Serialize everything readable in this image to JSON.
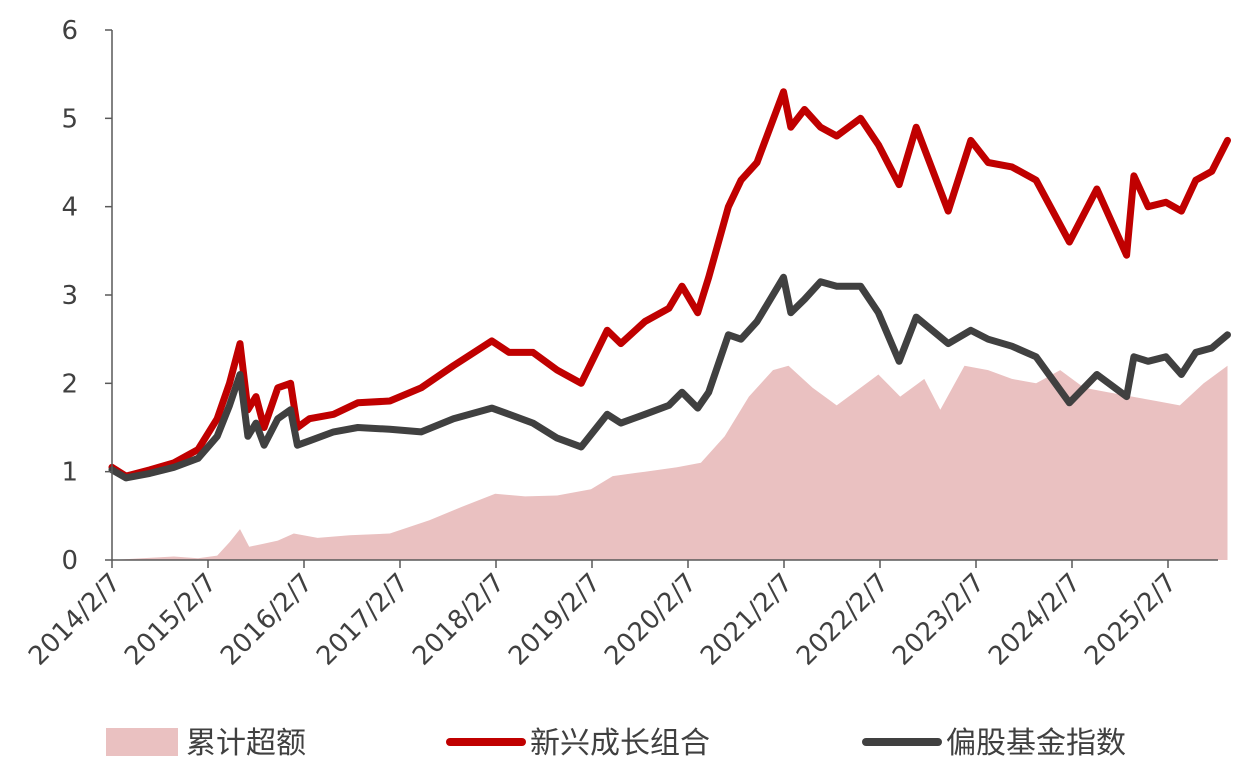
{
  "chart_data": {
    "type": "line",
    "title": "",
    "xlabel": "",
    "ylabel": "",
    "ylim": [
      0,
      6
    ],
    "xlim": [
      "2014-02-07",
      "2025-09-30"
    ],
    "x_ticks": [
      "2014/2/7",
      "2015/2/7",
      "2016/2/7",
      "2017/2/7",
      "2018/2/7",
      "2019/2/7",
      "2020/2/7",
      "2021/2/7",
      "2022/2/7",
      "2023/2/7",
      "2024/2/7",
      "2025/2/7"
    ],
    "y_ticks": [
      "0",
      "1",
      "2",
      "3",
      "4",
      "5",
      "6"
    ],
    "grid": false,
    "legend_position": "bottom",
    "series": [
      {
        "name": "累计超额",
        "type": "area",
        "color": "#eac1c1",
        "points": [
          [
            "2014-02-07",
            0.0
          ],
          [
            "2014-06-01",
            0.02
          ],
          [
            "2014-10-01",
            0.04
          ],
          [
            "2015-01-01",
            0.02
          ],
          [
            "2015-03-15",
            0.05
          ],
          [
            "2015-05-01",
            0.2
          ],
          [
            "2015-06-10",
            0.35
          ],
          [
            "2015-07-15",
            0.15
          ],
          [
            "2015-09-01",
            0.18
          ],
          [
            "2015-11-01",
            0.22
          ],
          [
            "2016-01-01",
            0.3
          ],
          [
            "2016-04-01",
            0.25
          ],
          [
            "2016-08-01",
            0.28
          ],
          [
            "2017-01-01",
            0.3
          ],
          [
            "2017-06-01",
            0.45
          ],
          [
            "2017-10-01",
            0.6
          ],
          [
            "2018-02-07",
            0.75
          ],
          [
            "2018-06-01",
            0.72
          ],
          [
            "2018-10-01",
            0.73
          ],
          [
            "2019-02-07",
            0.8
          ],
          [
            "2019-05-01",
            0.95
          ],
          [
            "2019-09-01",
            1.0
          ],
          [
            "2020-01-01",
            1.05
          ],
          [
            "2020-04-01",
            1.1
          ],
          [
            "2020-07-01",
            1.4
          ],
          [
            "2020-10-01",
            1.85
          ],
          [
            "2021-01-01",
            2.15
          ],
          [
            "2021-03-01",
            2.2
          ],
          [
            "2021-06-01",
            1.95
          ],
          [
            "2021-09-01",
            1.75
          ],
          [
            "2021-12-01",
            1.95
          ],
          [
            "2022-02-07",
            2.1
          ],
          [
            "2022-05-01",
            1.85
          ],
          [
            "2022-08-01",
            2.05
          ],
          [
            "2022-10-01",
            1.7
          ],
          [
            "2023-01-01",
            2.2
          ],
          [
            "2023-04-01",
            2.15
          ],
          [
            "2023-07-01",
            2.05
          ],
          [
            "2023-10-01",
            2.0
          ],
          [
            "2024-01-01",
            2.15
          ],
          [
            "2024-04-01",
            1.95
          ],
          [
            "2024-07-01",
            1.9
          ],
          [
            "2024-10-01",
            1.85
          ],
          [
            "2025-01-01",
            1.8
          ],
          [
            "2025-04-01",
            1.75
          ],
          [
            "2025-07-01",
            2.0
          ],
          [
            "2025-09-30",
            2.2
          ]
        ]
      },
      {
        "name": "新兴成长组合",
        "type": "line",
        "color": "#c00000",
        "points": [
          [
            "2014-02-07",
            1.05
          ],
          [
            "2014-04-01",
            0.95
          ],
          [
            "2014-07-01",
            1.02
          ],
          [
            "2014-10-01",
            1.1
          ],
          [
            "2015-01-01",
            1.25
          ],
          [
            "2015-03-15",
            1.6
          ],
          [
            "2015-05-01",
            2.0
          ],
          [
            "2015-06-10",
            2.45
          ],
          [
            "2015-07-10",
            1.7
          ],
          [
            "2015-08-10",
            1.85
          ],
          [
            "2015-09-10",
            1.5
          ],
          [
            "2015-11-01",
            1.95
          ],
          [
            "2015-12-20",
            2.0
          ],
          [
            "2016-01-15",
            1.5
          ],
          [
            "2016-03-01",
            1.6
          ],
          [
            "2016-06-01",
            1.65
          ],
          [
            "2016-09-01",
            1.78
          ],
          [
            "2017-01-01",
            1.8
          ],
          [
            "2017-05-01",
            1.95
          ],
          [
            "2017-09-01",
            2.2
          ],
          [
            "2018-01-25",
            2.48
          ],
          [
            "2018-04-01",
            2.35
          ],
          [
            "2018-07-01",
            2.35
          ],
          [
            "2018-10-01",
            2.15
          ],
          [
            "2019-01-01",
            2.0
          ],
          [
            "2019-04-10",
            2.6
          ],
          [
            "2019-06-01",
            2.45
          ],
          [
            "2019-09-01",
            2.7
          ],
          [
            "2019-12-01",
            2.85
          ],
          [
            "2020-01-20",
            3.1
          ],
          [
            "2020-03-20",
            2.8
          ],
          [
            "2020-05-01",
            3.2
          ],
          [
            "2020-07-15",
            4.0
          ],
          [
            "2020-09-01",
            4.3
          ],
          [
            "2020-11-01",
            4.5
          ],
          [
            "2021-02-10",
            5.3
          ],
          [
            "2021-03-10",
            4.9
          ],
          [
            "2021-05-01",
            5.1
          ],
          [
            "2021-07-01",
            4.9
          ],
          [
            "2021-09-01",
            4.8
          ],
          [
            "2021-12-01",
            5.0
          ],
          [
            "2022-02-07",
            4.7
          ],
          [
            "2022-04-27",
            4.25
          ],
          [
            "2022-07-01",
            4.9
          ],
          [
            "2022-10-31",
            3.95
          ],
          [
            "2023-01-25",
            4.75
          ],
          [
            "2023-04-01",
            4.5
          ],
          [
            "2023-07-01",
            4.45
          ],
          [
            "2023-10-01",
            4.3
          ],
          [
            "2024-02-05",
            3.6
          ],
          [
            "2024-05-20",
            4.2
          ],
          [
            "2024-09-10",
            3.45
          ],
          [
            "2024-10-08",
            4.35
          ],
          [
            "2024-12-01",
            4.0
          ],
          [
            "2025-02-07",
            4.05
          ],
          [
            "2025-04-07",
            3.95
          ],
          [
            "2025-06-01",
            4.3
          ],
          [
            "2025-08-01",
            4.4
          ],
          [
            "2025-09-30",
            4.75
          ]
        ]
      },
      {
        "name": "偏股基金指数",
        "type": "line",
        "color": "#404040",
        "points": [
          [
            "2014-02-07",
            1.02
          ],
          [
            "2014-04-01",
            0.93
          ],
          [
            "2014-07-01",
            0.98
          ],
          [
            "2014-10-01",
            1.05
          ],
          [
            "2015-01-01",
            1.15
          ],
          [
            "2015-03-15",
            1.4
          ],
          [
            "2015-05-01",
            1.75
          ],
          [
            "2015-06-10",
            2.1
          ],
          [
            "2015-07-10",
            1.4
          ],
          [
            "2015-08-10",
            1.55
          ],
          [
            "2015-09-10",
            1.3
          ],
          [
            "2015-11-01",
            1.6
          ],
          [
            "2015-12-20",
            1.7
          ],
          [
            "2016-01-15",
            1.3
          ],
          [
            "2016-03-01",
            1.35
          ],
          [
            "2016-06-01",
            1.45
          ],
          [
            "2016-09-01",
            1.5
          ],
          [
            "2017-01-01",
            1.48
          ],
          [
            "2017-05-01",
            1.45
          ],
          [
            "2017-09-01",
            1.6
          ],
          [
            "2018-01-25",
            1.72
          ],
          [
            "2018-04-01",
            1.65
          ],
          [
            "2018-07-01",
            1.55
          ],
          [
            "2018-10-01",
            1.38
          ],
          [
            "2019-01-01",
            1.28
          ],
          [
            "2019-04-10",
            1.65
          ],
          [
            "2019-06-01",
            1.55
          ],
          [
            "2019-09-01",
            1.65
          ],
          [
            "2019-12-01",
            1.75
          ],
          [
            "2020-01-20",
            1.9
          ],
          [
            "2020-03-20",
            1.72
          ],
          [
            "2020-05-01",
            1.9
          ],
          [
            "2020-07-15",
            2.55
          ],
          [
            "2020-09-01",
            2.5
          ],
          [
            "2020-11-01",
            2.7
          ],
          [
            "2021-02-10",
            3.2
          ],
          [
            "2021-03-10",
            2.8
          ],
          [
            "2021-05-01",
            2.95
          ],
          [
            "2021-07-01",
            3.15
          ],
          [
            "2021-09-01",
            3.1
          ],
          [
            "2021-12-01",
            3.1
          ],
          [
            "2022-02-07",
            2.8
          ],
          [
            "2022-04-27",
            2.25
          ],
          [
            "2022-07-01",
            2.75
          ],
          [
            "2022-10-31",
            2.45
          ],
          [
            "2023-01-25",
            2.6
          ],
          [
            "2023-04-01",
            2.5
          ],
          [
            "2023-07-01",
            2.42
          ],
          [
            "2023-10-01",
            2.3
          ],
          [
            "2024-02-05",
            1.78
          ],
          [
            "2024-05-20",
            2.1
          ],
          [
            "2024-09-10",
            1.85
          ],
          [
            "2024-10-08",
            2.3
          ],
          [
            "2024-12-01",
            2.25
          ],
          [
            "2025-02-07",
            2.3
          ],
          [
            "2025-04-07",
            2.1
          ],
          [
            "2025-06-01",
            2.35
          ],
          [
            "2025-08-01",
            2.4
          ],
          [
            "2025-09-30",
            2.55
          ]
        ]
      }
    ]
  }
}
